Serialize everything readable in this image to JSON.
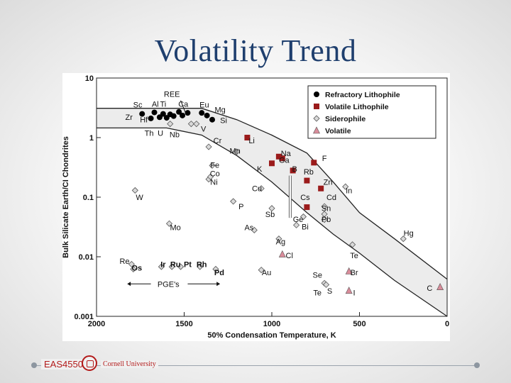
{
  "slide": {
    "title": "Volatility Trend",
    "footer_course": "EAS4550",
    "footer_university": "Cornell University"
  },
  "chart_data": {
    "type": "scatter",
    "xlabel": "50% Condensation Temperature, K",
    "ylabel": "Bulk Silicate Earth/CI Chondrites",
    "xlim": [
      2000,
      0
    ],
    "ylim": [
      0.001,
      10
    ],
    "y_scale": "log",
    "x_ticks": [
      2000,
      1500,
      1000,
      500,
      0
    ],
    "y_ticks": [
      {
        "value": 10,
        "label": "10"
      },
      {
        "value": 1,
        "label": "1"
      },
      {
        "value": 0.1,
        "label": "0.1"
      },
      {
        "value": 0.01,
        "label": "0.01"
      },
      {
        "value": 0.001,
        "label": "0.001"
      }
    ],
    "legend_position": "top-right",
    "series": [
      {
        "name": "Refractory Lithophile",
        "marker": "circle",
        "color": "#000000",
        "points": [
          {
            "x": 1740,
            "y": 2.5
          },
          {
            "x": 1690,
            "y": 2.1
          },
          {
            "x": 1670,
            "y": 2.65
          },
          {
            "x": 1640,
            "y": 2.2
          },
          {
            "x": 1620,
            "y": 2.5
          },
          {
            "x": 1600,
            "y": 2.15
          },
          {
            "x": 1580,
            "y": 2.45
          },
          {
            "x": 1560,
            "y": 2.3
          },
          {
            "x": 1530,
            "y": 2.7
          },
          {
            "x": 1510,
            "y": 2.35
          },
          {
            "x": 1480,
            "y": 2.6
          },
          {
            "x": 1400,
            "y": 2.6
          },
          {
            "x": 1370,
            "y": 2.35
          },
          {
            "x": 1340,
            "y": 2.0
          }
        ]
      },
      {
        "name": "Volatile Lithophile",
        "marker": "square",
        "color": "#9b1b1b",
        "points": [
          {
            "x": 1140,
            "y": 1.0
          },
          {
            "x": 1000,
            "y": 0.37
          },
          {
            "x": 960,
            "y": 0.48
          },
          {
            "x": 940,
            "y": 0.45
          },
          {
            "x": 880,
            "y": 0.28
          },
          {
            "x": 760,
            "y": 0.38
          },
          {
            "x": 800,
            "y": 0.19
          },
          {
            "x": 720,
            "y": 0.14
          },
          {
            "x": 800,
            "y": 0.068
          }
        ]
      },
      {
        "name": "Siderophile",
        "marker": "diamond",
        "color": "#9a9a9a",
        "points": [
          {
            "x": 1780,
            "y": 0.13
          },
          {
            "x": 1585,
            "y": 0.036
          },
          {
            "x": 1800,
            "y": 0.0075
          },
          {
            "x": 1790,
            "y": 0.0062
          },
          {
            "x": 1630,
            "y": 0.0068
          },
          {
            "x": 1570,
            "y": 0.0068
          },
          {
            "x": 1520,
            "y": 0.0068
          },
          {
            "x": 1410,
            "y": 0.0068
          },
          {
            "x": 1320,
            "y": 0.0062
          },
          {
            "x": 1360,
            "y": 0.7
          },
          {
            "x": 1340,
            "y": 0.34
          },
          {
            "x": 1360,
            "y": 0.2
          },
          {
            "x": 1350,
            "y": 0.22
          },
          {
            "x": 1220,
            "y": 0.085
          },
          {
            "x": 1100,
            "y": 0.028
          },
          {
            "x": 1000,
            "y": 0.065
          },
          {
            "x": 1060,
            "y": 0.14
          },
          {
            "x": 960,
            "y": 0.02
          },
          {
            "x": 1060,
            "y": 0.006
          },
          {
            "x": 860,
            "y": 0.034
          },
          {
            "x": 820,
            "y": 0.047
          },
          {
            "x": 700,
            "y": 0.07
          },
          {
            "x": 700,
            "y": 0.052
          },
          {
            "x": 700,
            "y": 0.042
          },
          {
            "x": 580,
            "y": 0.15
          },
          {
            "x": 540,
            "y": 0.016
          },
          {
            "x": 700,
            "y": 0.0036
          },
          {
            "x": 690,
            "y": 0.0034
          },
          {
            "x": 250,
            "y": 0.02
          },
          {
            "x": 1580,
            "y": 1.7
          },
          {
            "x": 1460,
            "y": 1.7
          },
          {
            "x": 1430,
            "y": 1.7
          },
          {
            "x": 1200,
            "y": 0.58
          }
        ]
      },
      {
        "name": "Volatile",
        "marker": "triangle",
        "color": "#d98c9a",
        "points": [
          {
            "x": 940,
            "y": 0.011
          },
          {
            "x": 560,
            "y": 0.0057
          },
          {
            "x": 560,
            "y": 0.0027
          },
          {
            "x": 40,
            "y": 0.0031
          }
        ]
      }
    ],
    "labels": [
      {
        "text": "REE",
        "x": 1570,
        "y": 5.4
      },
      {
        "text": "Sc",
        "x": 1765,
        "y": 3.6
      },
      {
        "text": "Al",
        "x": 1665,
        "y": 3.7
      },
      {
        "text": "Ti",
        "x": 1620,
        "y": 3.7
      },
      {
        "text": "Ca",
        "x": 1505,
        "y": 3.7
      },
      {
        "text": "Eu",
        "x": 1385,
        "y": 3.6
      },
      {
        "text": "Mg",
        "x": 1295,
        "y": 2.95
      },
      {
        "text": "Zr",
        "x": 1815,
        "y": 2.2
      },
      {
        "text": "Hf",
        "x": 1730,
        "y": 2.0
      },
      {
        "text": "Si",
        "x": 1275,
        "y": 1.95
      },
      {
        "text": "V",
        "x": 1390,
        "y": 1.4
      },
      {
        "text": "Th",
        "x": 1700,
        "y": 1.2
      },
      {
        "text": "U",
        "x": 1635,
        "y": 1.2
      },
      {
        "text": "Nb",
        "x": 1555,
        "y": 1.13
      },
      {
        "text": "Cr",
        "x": 1310,
        "y": 0.9
      },
      {
        "text": "Li",
        "x": 1115,
        "y": 0.9
      },
      {
        "text": "Mn",
        "x": 1210,
        "y": 0.6
      },
      {
        "text": "Na",
        "x": 920,
        "y": 0.55
      },
      {
        "text": "Ga",
        "x": 930,
        "y": 0.42
      },
      {
        "text": "F",
        "x": 700,
        "y": 0.45
      },
      {
        "text": "K",
        "x": 1070,
        "y": 0.3
      },
      {
        "text": "B",
        "x": 870,
        "y": 0.3
      },
      {
        "text": "Rb",
        "x": 790,
        "y": 0.27
      },
      {
        "text": "Fe",
        "x": 1325,
        "y": 0.35
      },
      {
        "text": "Co",
        "x": 1325,
        "y": 0.25
      },
      {
        "text": "Ni",
        "x": 1330,
        "y": 0.18
      },
      {
        "text": "Zn",
        "x": 680,
        "y": 0.18
      },
      {
        "text": "In",
        "x": 560,
        "y": 0.13
      },
      {
        "text": "Cu",
        "x": 1085,
        "y": 0.14
      },
      {
        "text": "Cs",
        "x": 810,
        "y": 0.1
      },
      {
        "text": "Cd",
        "x": 660,
        "y": 0.1
      },
      {
        "text": "W",
        "x": 1755,
        "y": 0.1
      },
      {
        "text": "P",
        "x": 1175,
        "y": 0.07
      },
      {
        "text": "Sn",
        "x": 690,
        "y": 0.065
      },
      {
        "text": "Sb",
        "x": 1010,
        "y": 0.052
      },
      {
        "text": "Ge",
        "x": 850,
        "y": 0.043
      },
      {
        "text": "Pb",
        "x": 690,
        "y": 0.043
      },
      {
        "text": "Bi",
        "x": 810,
        "y": 0.032
      },
      {
        "text": "Mo",
        "x": 1550,
        "y": 0.031
      },
      {
        "text": "As",
        "x": 1130,
        "y": 0.031
      },
      {
        "text": "Hg",
        "x": 220,
        "y": 0.025
      },
      {
        "text": "Ag",
        "x": 950,
        "y": 0.018
      },
      {
        "text": "Cl",
        "x": 900,
        "y": 0.0105
      },
      {
        "text": "Te",
        "x": 530,
        "y": 0.0105
      },
      {
        "text": "Re",
        "x": 1840,
        "y": 0.0085
      },
      {
        "text": "Os",
        "x": 1770,
        "y": 0.0065,
        "bold": true
      },
      {
        "text": "Ir",
        "x": 1620,
        "y": 0.0075,
        "bold": true
      },
      {
        "text": "Ru",
        "x": 1550,
        "y": 0.0075,
        "bold": true
      },
      {
        "text": "Pt",
        "x": 1480,
        "y": 0.0075,
        "bold": true
      },
      {
        "text": "Rh",
        "x": 1400,
        "y": 0.0075,
        "bold": true
      },
      {
        "text": "Pd",
        "x": 1300,
        "y": 0.0055,
        "bold": true
      },
      {
        "text": "Au",
        "x": 1030,
        "y": 0.0055
      },
      {
        "text": "Br",
        "x": 530,
        "y": 0.0055
      },
      {
        "text": "Se",
        "x": 740,
        "y": 0.005
      },
      {
        "text": "S",
        "x": 670,
        "y": 0.0027
      },
      {
        "text": "Te",
        "x": 740,
        "y": 0.0025
      },
      {
        "text": "I",
        "x": 530,
        "y": 0.0025
      },
      {
        "text": "C",
        "x": 100,
        "y": 0.003
      },
      {
        "text": "PGE's",
        "x": 1590,
        "y": 0.0035
      }
    ]
  }
}
